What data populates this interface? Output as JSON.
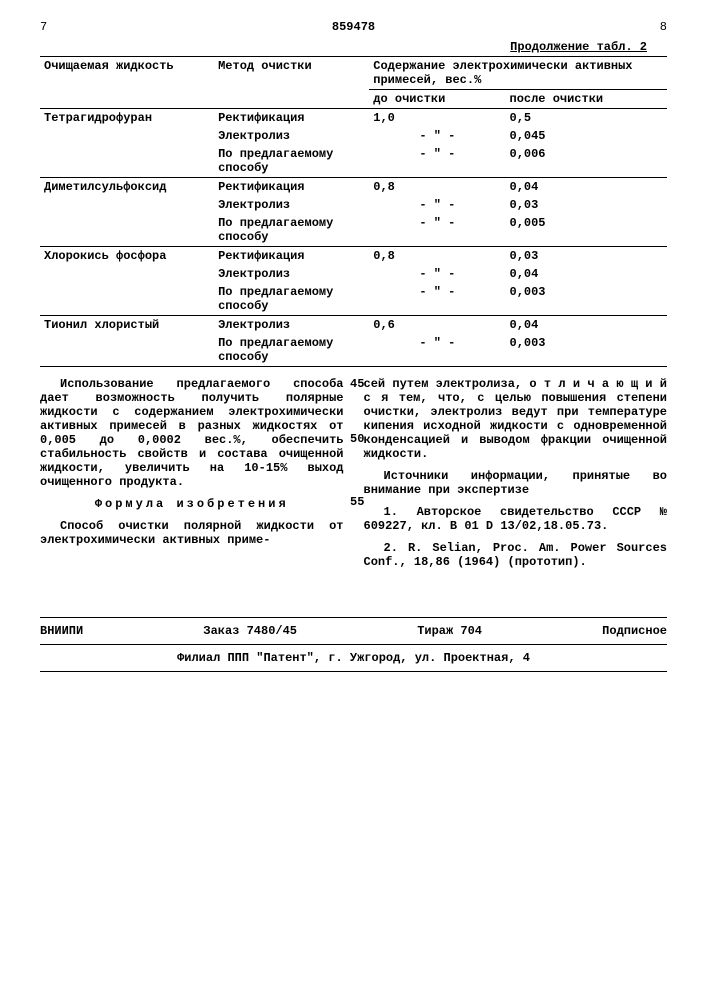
{
  "header": {
    "page_left": "7",
    "doc_number": "859478",
    "page_right": "8"
  },
  "table": {
    "caption": "Продолжение табл. 2",
    "head": {
      "col1": "Очищаемая жидкость",
      "col2": "Метод очистки",
      "col34": "Содержание электрохимически активных примесей, вес.%",
      "col3": "до очистки",
      "col4": "после очистки"
    },
    "groups": [
      {
        "liquid": "Тетрагидрофуран",
        "rows": [
          {
            "method": "Ректификация",
            "before": "1,0",
            "after": "0,5"
          },
          {
            "method": "Электролиз",
            "before": "- \" -",
            "after": "0,045"
          },
          {
            "method": "По предлагаемому способу",
            "before": "- \" -",
            "after": "0,006"
          }
        ]
      },
      {
        "liquid": "Диметилсульфоксид",
        "rows": [
          {
            "method": "Ректификация",
            "before": "0,8",
            "after": "0,04"
          },
          {
            "method": "Электролиз",
            "before": "- \" -",
            "after": "0,03"
          },
          {
            "method": "По предлагаемому способу",
            "before": "- \" -",
            "after": "0,005"
          }
        ]
      },
      {
        "liquid": "Хлорокись фосфора",
        "rows": [
          {
            "method": "Ректификация",
            "before": "0,8",
            "after": "0,03"
          },
          {
            "method": "Электролиз",
            "before": "- \" -",
            "after": "0,04"
          },
          {
            "method": "По предлагаемому способу",
            "before": "- \" -",
            "after": "0,003"
          }
        ]
      },
      {
        "liquid": "Тионил хлористый",
        "rows": [
          {
            "method": "Электролиз",
            "before": "0,6",
            "after": "0,04"
          },
          {
            "method": "По предлагаемому способу",
            "before": "- \" -",
            "after": "0,003"
          }
        ]
      }
    ]
  },
  "linenums": {
    "n45": "45",
    "n50": "50",
    "n55": "55"
  },
  "body": {
    "left_p1": "Использование предлагаемого способа дает возможность получить полярные жидкости с содержанием электрохимически активных примесей в разных жидкостях от 0,005 до 0,0002 вес.%, обеспечить стабильность свойств и состава очищенной жидкости, увеличить на 10-15% выход очищенного продукта.",
    "formula_title": "Формула изобретения",
    "left_p2": "Способ очистки полярной жидкости от электрохимически активных приме-",
    "right_p1": "сей путем электролиза, о т л и ч а ю щ и й с я  тем, что, с целью повышения степени очистки, электролиз ведут при температуре кипения исходной жидкости с одновременной конденсацией и выводом фракции очищенной жидкости.",
    "right_src_title": "Источники информации, принятые во внимание при экспертизе",
    "right_src1": "1. Авторское свидетельство СССР № 609227, кл. В 01 D 13/02,18.05.73.",
    "right_src2": "2. R. Selian, Proc. Am. Power Sources Conf., 18,86 (1964) (прототип)."
  },
  "footer": {
    "org": "ВНИИПИ",
    "order": "Заказ 7480/45",
    "tirage": "Тираж 704",
    "sub": "Подписное",
    "addr": "Филиал ППП \"Патент\", г. Ужгород, ул. Проектная, 4"
  }
}
